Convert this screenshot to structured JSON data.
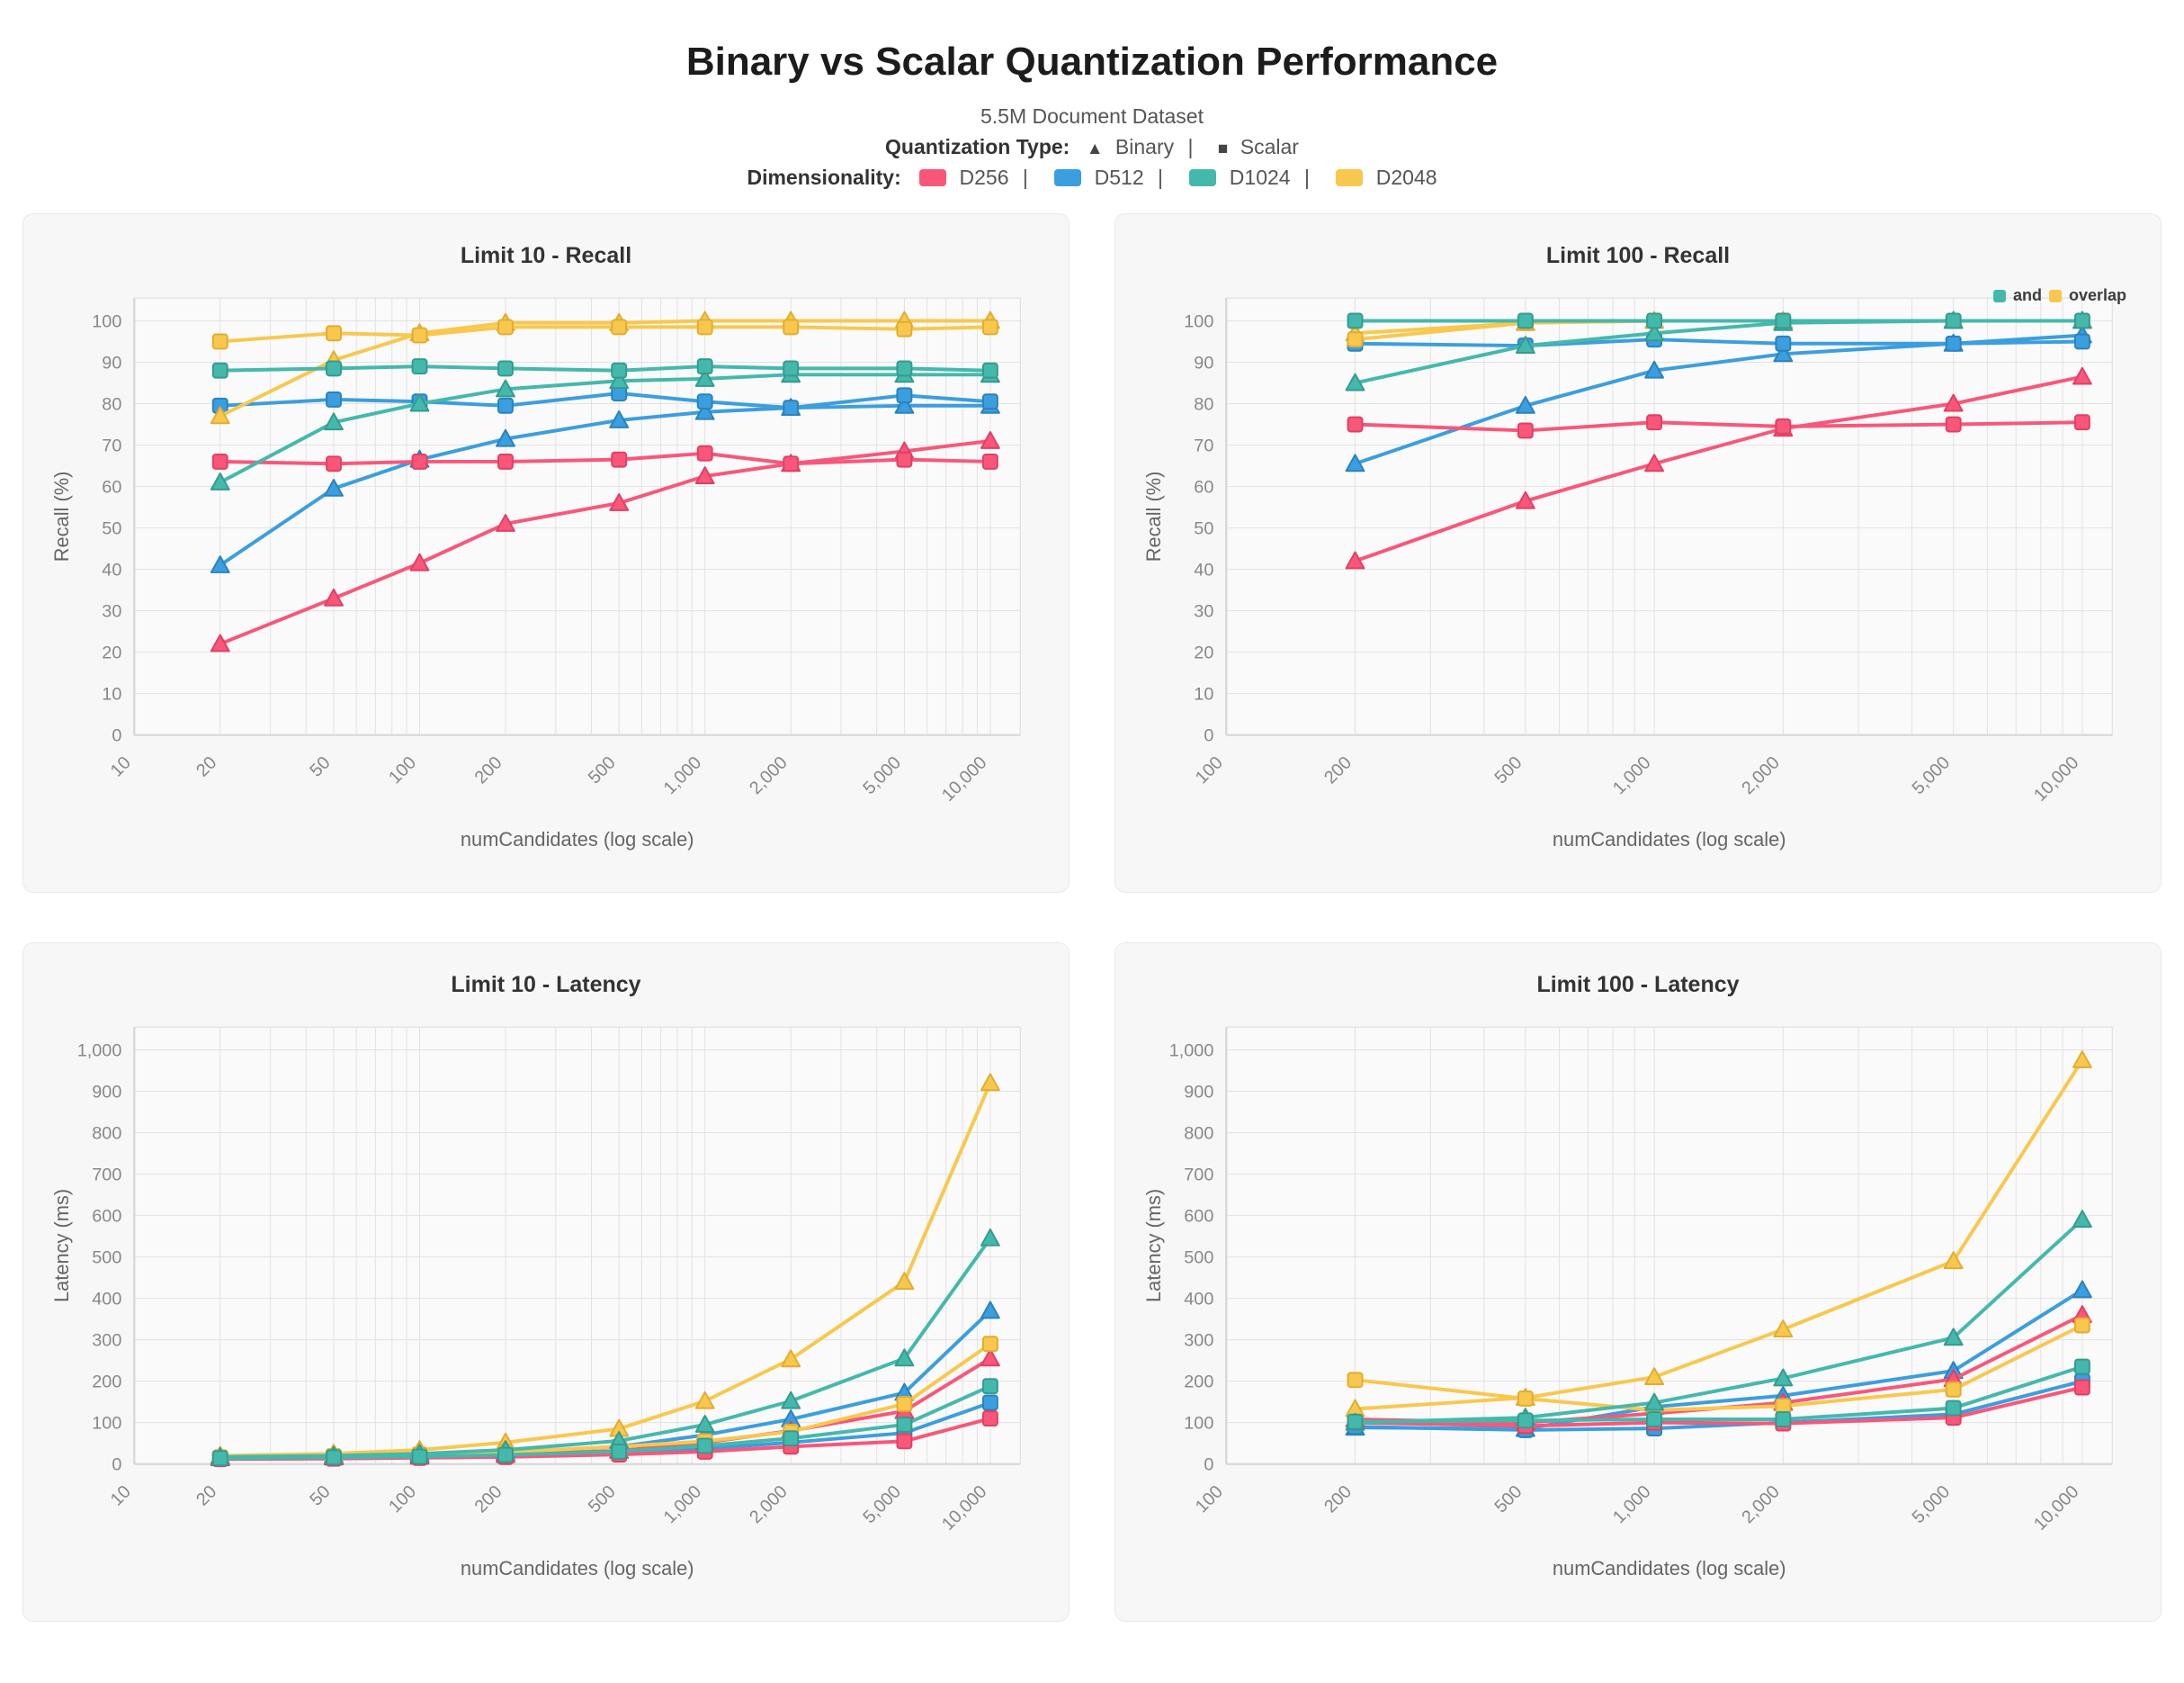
{
  "page": {
    "title": "Binary vs Scalar Quantization Performance",
    "subtitle": "5.5M Document Dataset",
    "quant_label": "Quantization Type:",
    "binary_symbol": "▲",
    "quant_binary": "Binary",
    "scalar_symbol": "■",
    "quant_scalar": "Scalar",
    "dim_label": "Dimensionality:",
    "separator": "|"
  },
  "dims": [
    {
      "label": "D256"
    },
    {
      "label": "D512"
    },
    {
      "label": "D1024"
    },
    {
      "label": "D2048"
    }
  ],
  "palette": {
    "D256": {
      "fill": "#F8577A",
      "stroke": "#E23F63"
    },
    "D512": {
      "fill": "#3B9EDE",
      "stroke": "#2A82BD"
    },
    "D1024": {
      "fill": "#45B8AC",
      "stroke": "#349B8F"
    },
    "D2048": {
      "fill": "#F8C84E",
      "stroke": "#E3AC2E"
    }
  },
  "chart_data": [
    {
      "type": "line",
      "title": "Limit 10 - Recall",
      "xlabel": "numCandidates (log scale)",
      "ylabel": "Recall (%)",
      "x_scale": "log",
      "grid": true,
      "xlim": [
        10,
        10000
      ],
      "x_ticks": [
        10,
        20,
        50,
        100,
        200,
        500,
        1000,
        2000,
        5000,
        10000
      ],
      "ylim": [
        0,
        100
      ],
      "y_step": 10,
      "x": [
        20,
        50,
        100,
        200,
        500,
        1000,
        2000,
        5000,
        10000
      ],
      "series": [
        {
          "name": "D512 Binary",
          "dim": "D512",
          "quant": "Binary",
          "values": [
            41,
            59.5,
            66.5,
            71.5,
            76,
            78,
            79,
            79.5,
            79.5
          ]
        },
        {
          "name": "D512 Scalar",
          "dim": "D512",
          "quant": "Scalar",
          "values": [
            79.5,
            81,
            80.5,
            79.5,
            82.5,
            80.5,
            79,
            82,
            80.5
          ]
        },
        {
          "name": "D256 Binary",
          "dim": "D256",
          "quant": "Binary",
          "values": [
            22,
            33,
            41.5,
            51,
            56,
            62.5,
            65.5,
            68.5,
            71
          ]
        },
        {
          "name": "D256 Scalar",
          "dim": "D256",
          "quant": "Scalar",
          "values": [
            66,
            65.5,
            66,
            66,
            66.5,
            68,
            65.5,
            66.5,
            66
          ]
        },
        {
          "name": "D2048 Binary",
          "dim": "D2048",
          "quant": "Binary",
          "values": [
            77,
            90.5,
            97,
            99.5,
            99.5,
            100,
            100,
            100,
            100
          ]
        },
        {
          "name": "D2048 Scalar",
          "dim": "D2048",
          "quant": "Scalar",
          "values": [
            95,
            97,
            96.5,
            98.5,
            98.5,
            98.5,
            98.5,
            98,
            98.5
          ]
        },
        {
          "name": "D1024 Binary",
          "dim": "D1024",
          "quant": "Binary",
          "values": [
            61,
            75.5,
            80,
            83.5,
            85.5,
            86,
            87,
            87,
            87
          ]
        },
        {
          "name": "D1024 Scalar",
          "dim": "D1024",
          "quant": "Scalar",
          "values": [
            88,
            88.5,
            89,
            88.5,
            88,
            89,
            88.5,
            88.5,
            88
          ]
        }
      ]
    },
    {
      "type": "line",
      "title": "Limit 100 - Recall",
      "xlabel": "numCandidates (log scale)",
      "ylabel": "Recall (%)",
      "x_scale": "log",
      "grid": true,
      "xlim": [
        100,
        10000
      ],
      "x_ticks": [
        100,
        200,
        500,
        1000,
        2000,
        5000,
        10000
      ],
      "ylim": [
        0,
        100
      ],
      "y_step": 10,
      "note": {
        "and_text": "and",
        "overlap_text": "overlap"
      },
      "x": [
        200,
        500,
        1000,
        2000,
        5000,
        10000
      ],
      "series": [
        {
          "name": "D512 Binary",
          "dim": "D512",
          "quant": "Binary",
          "values": [
            65.5,
            79.5,
            88,
            92,
            94.5,
            96.5
          ]
        },
        {
          "name": "D512 Scalar",
          "dim": "D512",
          "quant": "Scalar",
          "values": [
            94.5,
            94,
            95.5,
            94.5,
            94.5,
            95
          ]
        },
        {
          "name": "D256 Binary",
          "dim": "D256",
          "quant": "Binary",
          "values": [
            42,
            56.5,
            65.5,
            74,
            80,
            86.5
          ]
        },
        {
          "name": "D256 Scalar",
          "dim": "D256",
          "quant": "Scalar",
          "values": [
            75,
            73.5,
            75.5,
            74.5,
            75,
            75.5
          ]
        },
        {
          "name": "D2048 Binary",
          "dim": "D2048",
          "quant": "Binary",
          "values": [
            97,
            99.5,
            100,
            100,
            100,
            100
          ]
        },
        {
          "name": "D2048 Scalar",
          "dim": "D2048",
          "quant": "Scalar",
          "values": [
            95.5,
            99.5,
            100,
            100,
            100,
            100
          ]
        },
        {
          "name": "D1024 Binary",
          "dim": "D1024",
          "quant": "Binary",
          "values": [
            85,
            94,
            97,
            99.5,
            100,
            100
          ]
        },
        {
          "name": "D1024 Scalar",
          "dim": "D1024",
          "quant": "Scalar",
          "values": [
            100,
            100,
            100,
            100,
            100,
            100
          ]
        }
      ]
    },
    {
      "type": "line",
      "title": "Limit 10 - Latency",
      "xlabel": "numCandidates (log scale)",
      "ylabel": "Latency (ms)",
      "x_scale": "log",
      "grid": true,
      "xlim": [
        10,
        10000
      ],
      "x_ticks": [
        10,
        20,
        50,
        100,
        200,
        500,
        1000,
        2000,
        5000,
        10000
      ],
      "ylim": [
        0,
        1000
      ],
      "y_step": 100,
      "x": [
        20,
        50,
        100,
        200,
        500,
        1000,
        2000,
        5000,
        10000
      ],
      "series": [
        {
          "name": "D512 Binary",
          "dim": "D512",
          "quant": "Binary",
          "values": [
            15,
            18,
            21,
            27,
            42,
            70,
            108,
            172,
            370
          ]
        },
        {
          "name": "D512 Scalar",
          "dim": "D512",
          "quant": "Scalar",
          "values": [
            13,
            14,
            16,
            19,
            26,
            37,
            52,
            75,
            148
          ]
        },
        {
          "name": "D256 Binary",
          "dim": "D256",
          "quant": "Binary",
          "values": [
            14,
            16,
            18,
            22,
            32,
            52,
            80,
            128,
            255
          ]
        },
        {
          "name": "D256 Scalar",
          "dim": "D256",
          "quant": "Scalar",
          "values": [
            12,
            13,
            15,
            17,
            23,
            30,
            42,
            55,
            110
          ]
        },
        {
          "name": "D2048 Binary",
          "dim": "D2048",
          "quant": "Binary",
          "values": [
            20,
            25,
            34,
            52,
            85,
            152,
            253,
            440,
            920
          ]
        },
        {
          "name": "D2048 Scalar",
          "dim": "D2048",
          "quant": "Scalar",
          "values": [
            16,
            19,
            23,
            29,
            42,
            55,
            78,
            145,
            290
          ]
        },
        {
          "name": "D1024 Binary",
          "dim": "D1024",
          "quant": "Binary",
          "values": [
            17,
            20,
            25,
            34,
            56,
            95,
            152,
            255,
            545
          ]
        },
        {
          "name": "D1024 Scalar",
          "dim": "D1024",
          "quant": "Scalar",
          "values": [
            14,
            16,
            18,
            22,
            30,
            44,
            62,
            95,
            188
          ]
        }
      ]
    },
    {
      "type": "line",
      "title": "Limit 100 - Latency",
      "xlabel": "numCandidates (log scale)",
      "ylabel": "Latency (ms)",
      "x_scale": "log",
      "grid": true,
      "xlim": [
        100,
        10000
      ],
      "x_ticks": [
        100,
        200,
        500,
        1000,
        2000,
        5000,
        10000
      ],
      "ylim": [
        0,
        1000
      ],
      "y_step": 100,
      "x": [
        200,
        500,
        1000,
        2000,
        5000,
        10000
      ],
      "series": [
        {
          "name": "D512 Binary",
          "dim": "D512",
          "quant": "Binary",
          "values": [
            88,
            85,
            138,
            165,
            225,
            420
          ]
        },
        {
          "name": "D512 Scalar",
          "dim": "D512",
          "quant": "Scalar",
          "values": [
            90,
            82,
            86,
            100,
            120,
            200
          ]
        },
        {
          "name": "D256 Binary",
          "dim": "D256",
          "quant": "Binary",
          "values": [
            108,
            100,
            122,
            148,
            205,
            360
          ]
        },
        {
          "name": "D256 Scalar",
          "dim": "D256",
          "quant": "Scalar",
          "values": [
            100,
            92,
            100,
            98,
            112,
            185
          ]
        },
        {
          "name": "D2048 Binary",
          "dim": "D2048",
          "quant": "Binary",
          "values": [
            133,
            160,
            210,
            325,
            490,
            975
          ]
        },
        {
          "name": "D2048 Scalar",
          "dim": "D2048",
          "quant": "Scalar",
          "values": [
            203,
            158,
            130,
            140,
            180,
            335
          ]
        },
        {
          "name": "D1024 Binary",
          "dim": "D1024",
          "quant": "Binary",
          "values": [
            100,
            112,
            148,
            207,
            305,
            590
          ]
        },
        {
          "name": "D1024 Scalar",
          "dim": "D1024",
          "quant": "Scalar",
          "values": [
            102,
            105,
            108,
            108,
            135,
            235
          ]
        }
      ]
    }
  ]
}
